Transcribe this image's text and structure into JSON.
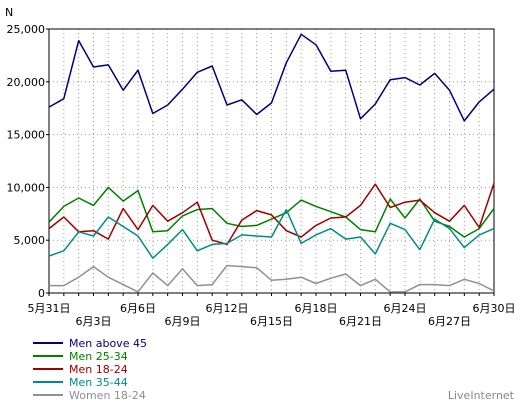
{
  "chart_data": {
    "type": "line",
    "ylabel": "N",
    "ylim": [
      0,
      25000
    ],
    "yticks": [
      0,
      5000,
      10000,
      15000,
      20000,
      25000
    ],
    "ytick_labels": [
      "0",
      "5,000",
      "10,000",
      "15,000",
      "20,000",
      "25,000"
    ],
    "x": [
      "5月31日",
      "6月1日",
      "6月2日",
      "6月3日",
      "6月4日",
      "6月5日",
      "6月6日",
      "6月7日",
      "6月8日",
      "6月9日",
      "6月10日",
      "6月11日",
      "6月12日",
      "6月13日",
      "6月14日",
      "6月15日",
      "6月16日",
      "6月17日",
      "6月18日",
      "6月19日",
      "6月20日",
      "6月21日",
      "6月22日",
      "6月23日",
      "6月24日",
      "6月25日",
      "6月26日",
      "6月27日",
      "6月28日",
      "6月29日",
      "6月30日"
    ],
    "xtick_labels": [
      {
        "index": 0,
        "label": "5月31日",
        "row": 0
      },
      {
        "index": 3,
        "label": "6月3日",
        "row": 1
      },
      {
        "index": 6,
        "label": "6月6日",
        "row": 0
      },
      {
        "index": 9,
        "label": "6月9日",
        "row": 1
      },
      {
        "index": 12,
        "label": "6月12日",
        "row": 0
      },
      {
        "index": 15,
        "label": "6月15日",
        "row": 1
      },
      {
        "index": 18,
        "label": "6月18日",
        "row": 0
      },
      {
        "index": 21,
        "label": "6月21日",
        "row": 1
      },
      {
        "index": 24,
        "label": "6月24日",
        "row": 0
      },
      {
        "index": 27,
        "label": "6月27日",
        "row": 1
      },
      {
        "index": 30,
        "label": "6月30日",
        "row": 0
      }
    ],
    "grid": true,
    "legend_position": "bottom-left",
    "series": [
      {
        "name": "Men above 45",
        "color": "#000080",
        "values": [
          17600,
          18400,
          23900,
          21400,
          21600,
          19200,
          21100,
          17000,
          17800,
          19300,
          20900,
          21500,
          17800,
          18300,
          16900,
          18000,
          21800,
          24500,
          23500,
          21000,
          21100,
          16500,
          17900,
          20200,
          20400,
          19700,
          20800,
          19200,
          16300,
          18100,
          19300
        ]
      },
      {
        "name": "Men 25-34",
        "color": "#008000",
        "values": [
          6700,
          8200,
          9000,
          8300,
          10000,
          8700,
          9700,
          5800,
          5900,
          7300,
          7900,
          8000,
          6600,
          6300,
          6400,
          7000,
          7600,
          8800,
          8200,
          7700,
          7200,
          6000,
          5800,
          8900,
          7100,
          8900,
          6800,
          6300,
          5300,
          6100,
          8000
        ]
      },
      {
        "name": "Men 18-24",
        "color": "#a00000",
        "values": [
          6100,
          7200,
          5800,
          5900,
          5100,
          8000,
          6000,
          8300,
          6800,
          7600,
          8600,
          5000,
          4600,
          6900,
          7800,
          7400,
          5900,
          5300,
          6400,
          7100,
          7200,
          8300,
          10300,
          8100,
          8600,
          8800,
          7600,
          6800,
          8300,
          6200,
          10400
        ]
      },
      {
        "name": "Men 35-44",
        "color": "#008b8b",
        "values": [
          3500,
          4000,
          5800,
          5400,
          7200,
          6300,
          5400,
          3300,
          4600,
          6000,
          4000,
          4600,
          4700,
          5500,
          5400,
          5300,
          7900,
          4700,
          5500,
          6100,
          5100,
          5300,
          3700,
          6600,
          6000,
          4100,
          7000,
          6100,
          4300,
          5500,
          6100
        ]
      },
      {
        "name": "Women 18-24",
        "color": "#909090",
        "values": [
          700,
          700,
          1500,
          2500,
          1500,
          800,
          100,
          1900,
          700,
          2300,
          700,
          800,
          2600,
          2500,
          2400,
          1200,
          1300,
          1500,
          900,
          1400,
          1800,
          700,
          1300,
          100,
          100,
          800,
          800,
          700,
          1300,
          900,
          200
        ]
      }
    ]
  },
  "watermark": "LiveInternet"
}
